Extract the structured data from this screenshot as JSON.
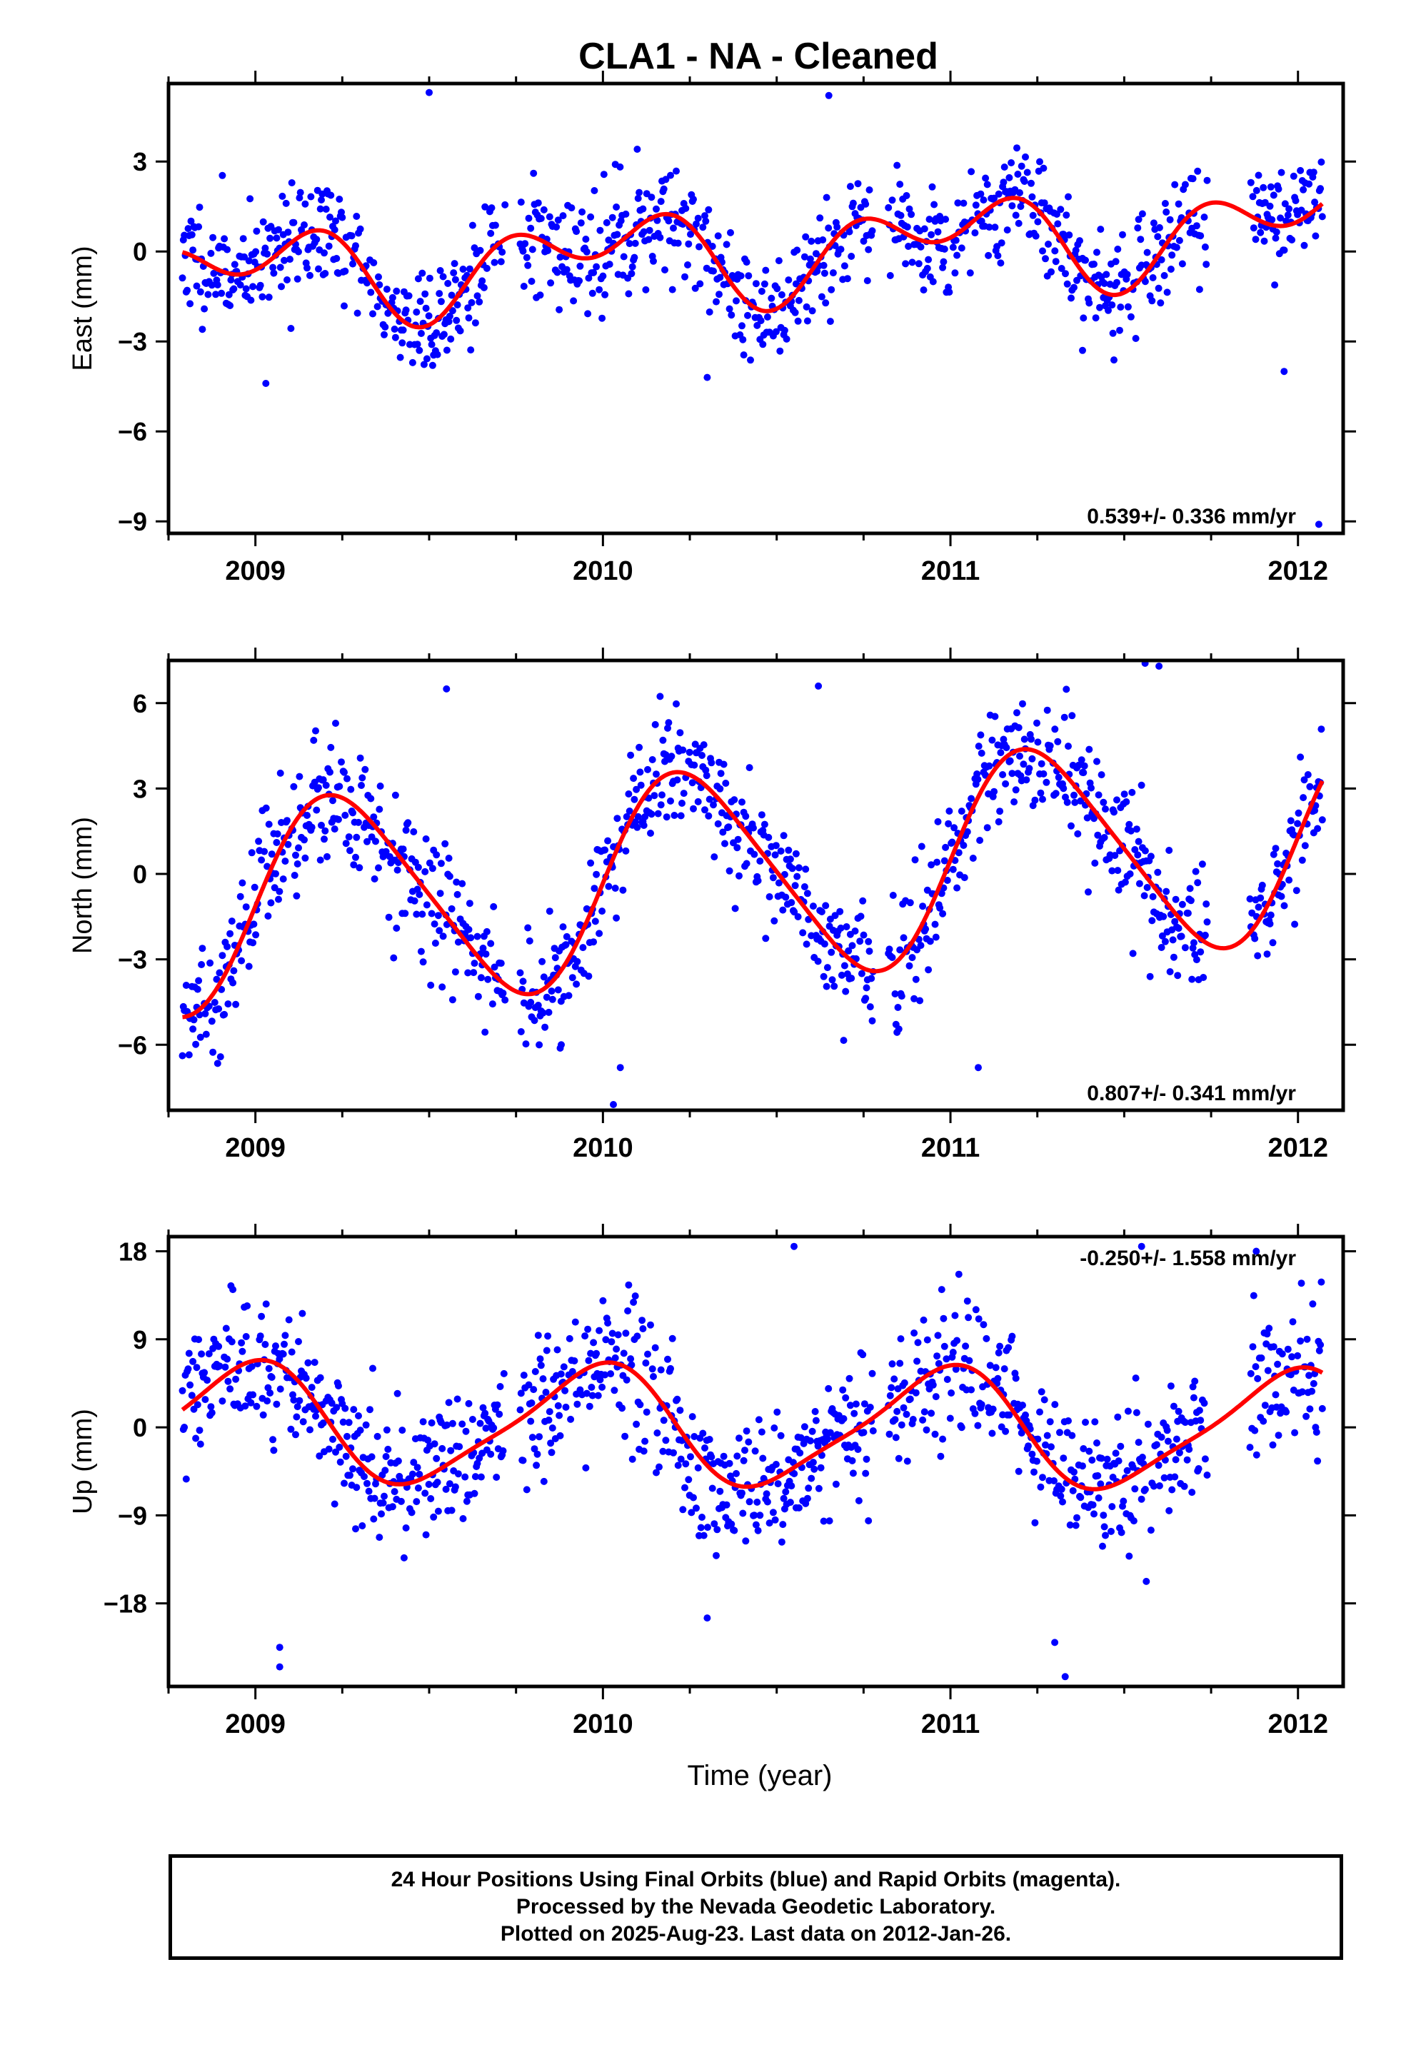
{
  "title": "CLA1  - NA - Cleaned",
  "x_axis_label": "Time (year)",
  "footer_lines": [
    "24 Hour Positions Using Final Orbits (blue) and Rapid Orbits (magenta).",
    "Processed by the Nevada Geodetic Laboratory.",
    "Plotted on 2025-Aug-23. Last data on 2012-Jan-26."
  ],
  "colors": {
    "points": "#0000ff",
    "fit": "#ff0000",
    "frame": "#000000"
  },
  "chart_data": [
    {
      "type": "scatter",
      "ylabel": "East (mm)",
      "rate_text": "0.539+/- 0.336 mm/yr",
      "xlim": [
        2008.75,
        2012.13
      ],
      "ylim": [
        -9.4,
        5.6
      ],
      "xticks": [
        2009,
        2010,
        2011,
        2012
      ],
      "yticks": [
        3,
        0,
        -3,
        -6,
        -9
      ],
      "ytick_labels": [
        "3",
        "0",
        "−3",
        "−6",
        "−9"
      ],
      "model": {
        "offset": 0.0,
        "rate": 0.539,
        "ref": 2010.4,
        "a1": 1.05,
        "a2": 1.0,
        "p1": 1.55,
        "p2": -1.15,
        "trend_extra": 0.0
      },
      "scatter_sd": 0.9,
      "seed": 11,
      "outliers": [
        [
          2009.03,
          -4.4
        ],
        [
          2011.96,
          -4.0
        ],
        [
          2012.06,
          -9.1
        ],
        [
          2009.5,
          5.3
        ],
        [
          2010.65,
          5.2
        ],
        [
          2010.3,
          -4.2
        ],
        [
          2011.38,
          -3.3
        ]
      ]
    },
    {
      "type": "scatter",
      "ylabel": "North (mm)",
      "rate_text": "0.807+/- 0.341 mm/yr",
      "xlim": [
        2008.75,
        2012.13
      ],
      "ylim": [
        -8.3,
        7.5
      ],
      "xticks": [
        2009,
        2010,
        2011,
        2012
      ],
      "yticks": [
        6,
        3,
        0,
        -3,
        -6
      ],
      "ytick_labels": [
        "6",
        "3",
        "0",
        "−3",
        "−6"
      ],
      "model": {
        "offset": 0.0,
        "rate": 0.807,
        "ref": 2010.4,
        "a1": 3.6,
        "a2": 0.5,
        "p1": 0.0,
        "p2": 0.0,
        "trend_extra": 0.0
      },
      "scatter_sd": 1.05,
      "seed": 23,
      "outliers": [
        [
          2010.03,
          -8.1
        ],
        [
          2009.88,
          -6.0
        ],
        [
          2010.05,
          -6.8
        ],
        [
          2011.6,
          7.3
        ],
        [
          2011.56,
          7.4
        ],
        [
          2009.55,
          6.5
        ],
        [
          2010.62,
          6.6
        ],
        [
          2011.08,
          -6.8
        ]
      ]
    },
    {
      "type": "scatter",
      "ylabel": "Up (mm)",
      "rate_text": "-0.250+/- 1.558 mm/yr",
      "xlim": [
        2008.75,
        2012.13
      ],
      "ylim": [
        -26.5,
        19.5
      ],
      "xticks": [
        2009,
        2010,
        2011,
        2012
      ],
      "yticks": [
        18,
        9,
        0,
        -9,
        -18
      ],
      "ytick_labels": [
        "18",
        "9",
        "0",
        "−9",
        "−18"
      ],
      "model": {
        "offset": 0.0,
        "rate": -0.25,
        "ref": 2010.4,
        "a1": 5.9,
        "a2": 1.2,
        "p1": 1.75,
        "p2": 0.6,
        "trend_extra": 0.0
      },
      "scatter_sd": 3.6,
      "seed": 37,
      "outliers": [
        [
          2009.07,
          -24.5
        ],
        [
          2009.07,
          -22.5
        ],
        [
          2011.33,
          -25.5
        ],
        [
          2011.3,
          -22.0
        ],
        [
          2010.3,
          -19.5
        ],
        [
          2010.55,
          18.5
        ],
        [
          2011.55,
          18.5
        ],
        [
          2011.88,
          18.0
        ]
      ]
    }
  ]
}
